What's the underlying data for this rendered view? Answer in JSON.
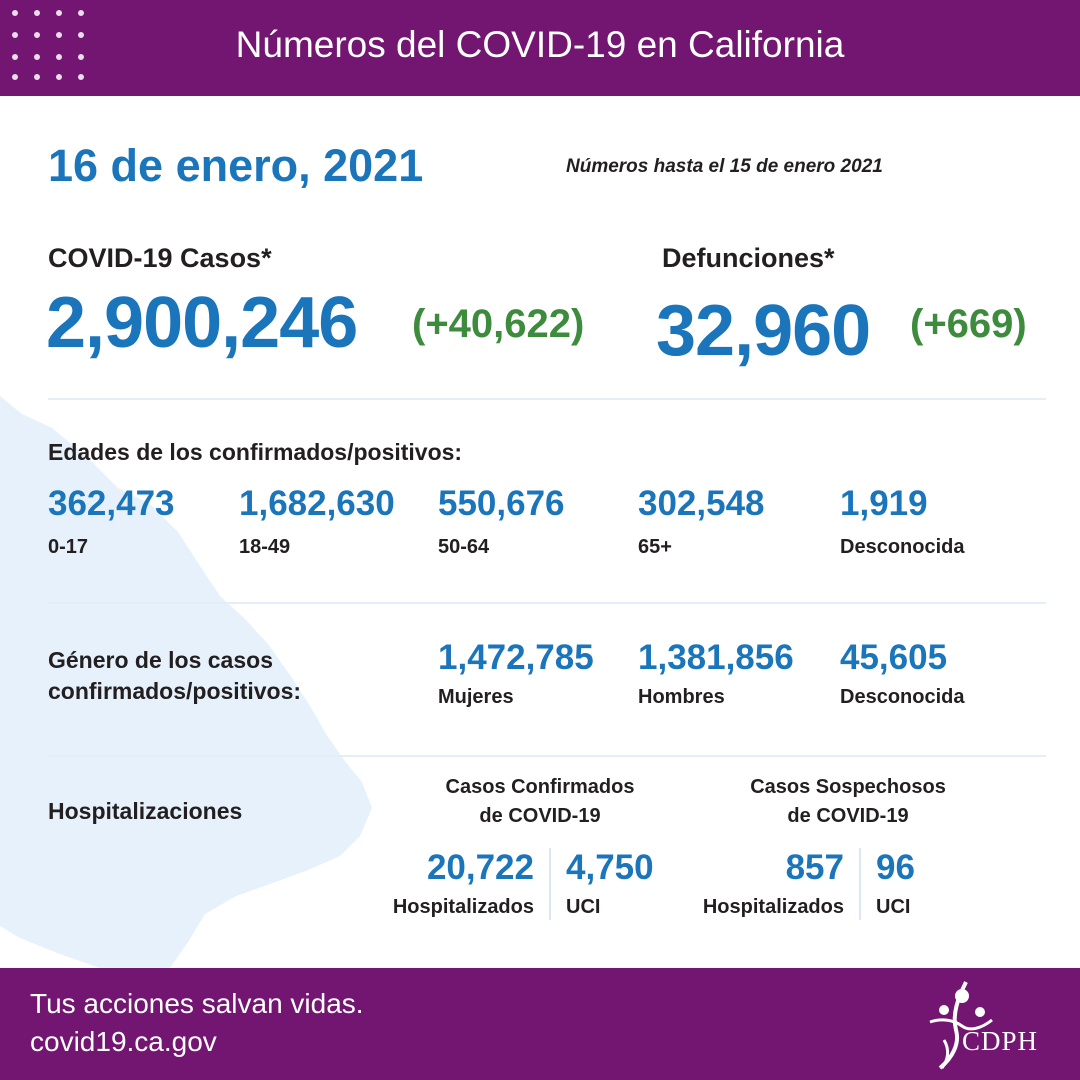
{
  "header": {
    "title": "Números del COVID-19 en California"
  },
  "date": "16 de enero, 2021",
  "as_of": "Números hasta el 15 de enero 2021",
  "cases": {
    "label": "COVID-19 Casos*",
    "value": "2,900,246",
    "delta": "(+40,622)"
  },
  "deaths": {
    "label": "Defunciones*",
    "value": "32,960",
    "delta": "(+669)"
  },
  "ages": {
    "title": "Edades de los confirmados/positivos:",
    "items": [
      {
        "value": "362,473",
        "label": "0-17"
      },
      {
        "value": "1,682,630",
        "label": "18-49"
      },
      {
        "value": "550,676",
        "label": "50-64"
      },
      {
        "value": "302,548",
        "label": "65+"
      },
      {
        "value": "1,919",
        "label": "Desconocida"
      }
    ]
  },
  "gender": {
    "title_line1": "Género de los casos",
    "title_line2": "confirmados/positivos:",
    "items": [
      {
        "value": "1,472,785",
        "label": "Mujeres"
      },
      {
        "value": "1,381,856",
        "label": "Hombres"
      },
      {
        "value": "45,605",
        "label": "Desconocida"
      }
    ]
  },
  "hospital": {
    "title": "Hospitalizaciones",
    "confirmed": {
      "heading_line1": "Casos Confirmados",
      "heading_line2": "de COVID-19",
      "hospitalized_value": "20,722",
      "hospitalized_label": "Hospitalizados",
      "icu_value": "4,750",
      "icu_label": "UCI"
    },
    "suspected": {
      "heading_line1": "Casos Sospechosos",
      "heading_line2": "de COVID-19",
      "hospitalized_value": "857",
      "hospitalized_label": "Hospitalizados",
      "icu_value": "96",
      "icu_label": "UCI"
    }
  },
  "footer": {
    "tagline": "Tus acciones salvan vidas.",
    "url": "covid19.ca.gov",
    "logo_text": "CDPH"
  },
  "colors": {
    "brand_purple": "#731671",
    "number_blue": "#1b75bb",
    "delta_green": "#3d8b3d",
    "map_fill": "#e6f1fb"
  }
}
